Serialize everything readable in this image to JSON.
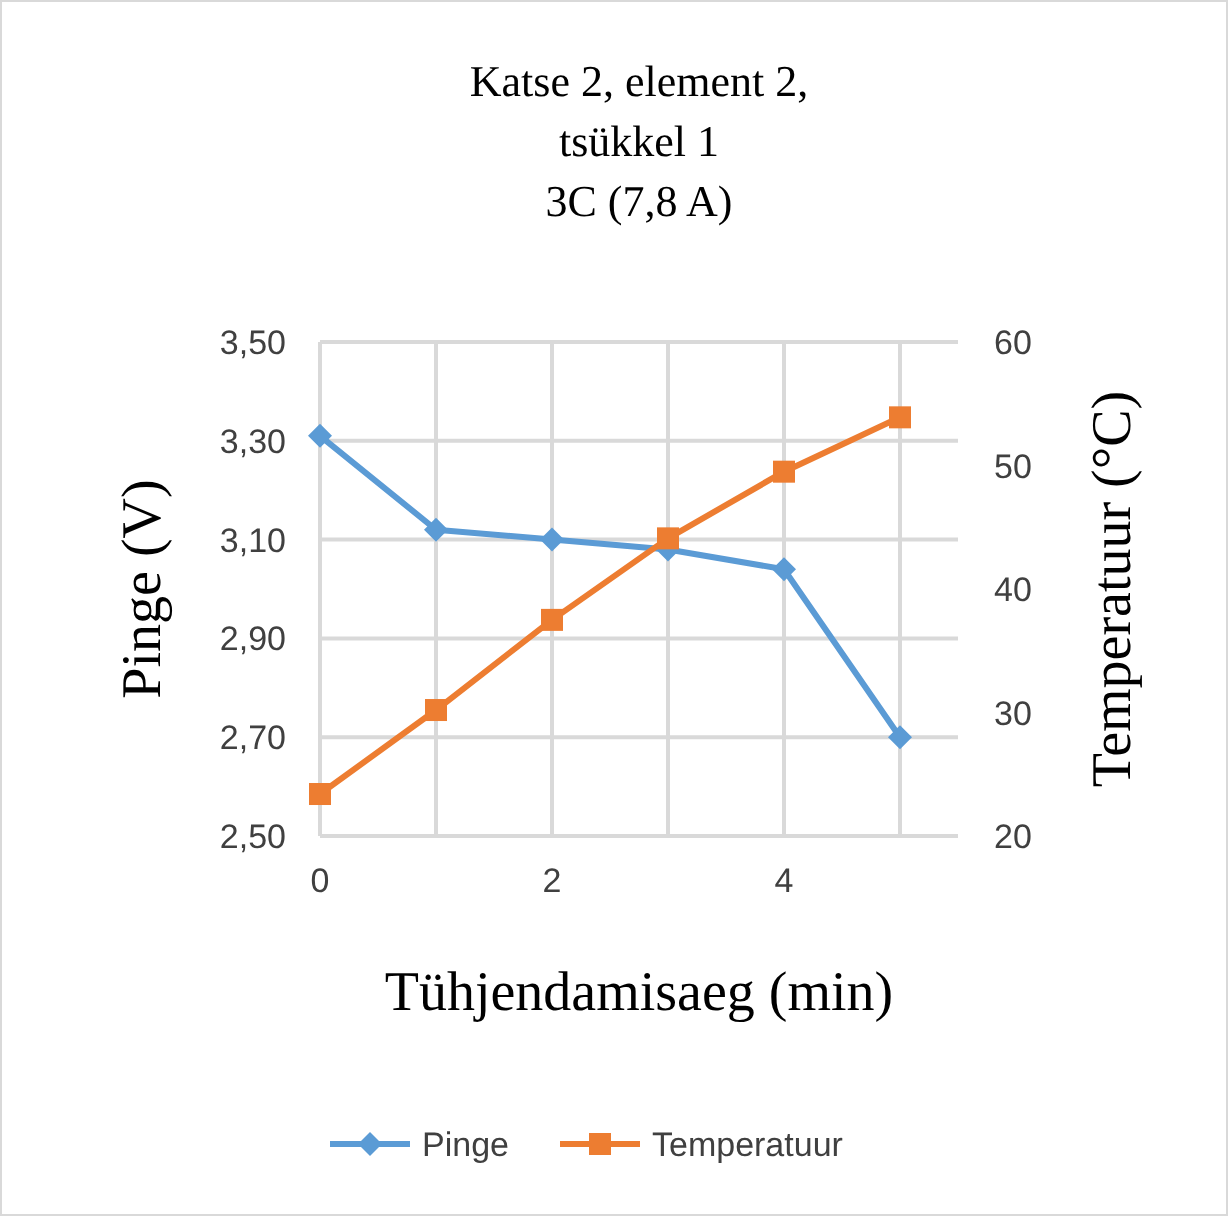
{
  "chart_data": {
    "type": "line",
    "title": "Katse 2, element 2,\ntsükkel 1\n3C (7,8 A)",
    "xlabel": "Tühjendamisaeg  (min)",
    "ylabel": "Pinge  (V)",
    "y2label": "Temperatuur  (°C)",
    "x": [
      0,
      1,
      2,
      3,
      4,
      5
    ],
    "series": [
      {
        "name": "Pinge",
        "color": "#5b9bd5",
        "marker": "diamond",
        "values": [
          3.31,
          3.12,
          3.1,
          3.08,
          3.04,
          2.7
        ]
      },
      {
        "name": "Temperatuur",
        "color": "#ed7d31",
        "marker": "square",
        "axis": "y2",
        "values": [
          23.4,
          30.2,
          37.5,
          44.1,
          49.5,
          53.9
        ]
      }
    ],
    "xlim": [
      0,
      5.5
    ],
    "xticks": [
      0,
      {
        "value": 1,
        "label": null
      },
      2,
      {
        "value": 3,
        "label": null
      },
      4,
      {
        "value": 5,
        "label": null
      }
    ],
    "ylim": [
      2.5,
      3.5
    ],
    "yticks": [
      {
        "value": 2.5,
        "label": "2,50"
      },
      {
        "value": 2.7,
        "label": "2,70"
      },
      {
        "value": 2.9,
        "label": "2,90"
      },
      {
        "value": 3.1,
        "label": "3,10"
      },
      {
        "value": 3.3,
        "label": "3,30"
      },
      {
        "value": 3.5,
        "label": "3,50"
      }
    ],
    "y2lim": [
      20,
      60
    ],
    "y2ticks": [
      20,
      30,
      40,
      50,
      60
    ],
    "grid": true,
    "legend": "bottom",
    "line_style": "solid"
  }
}
